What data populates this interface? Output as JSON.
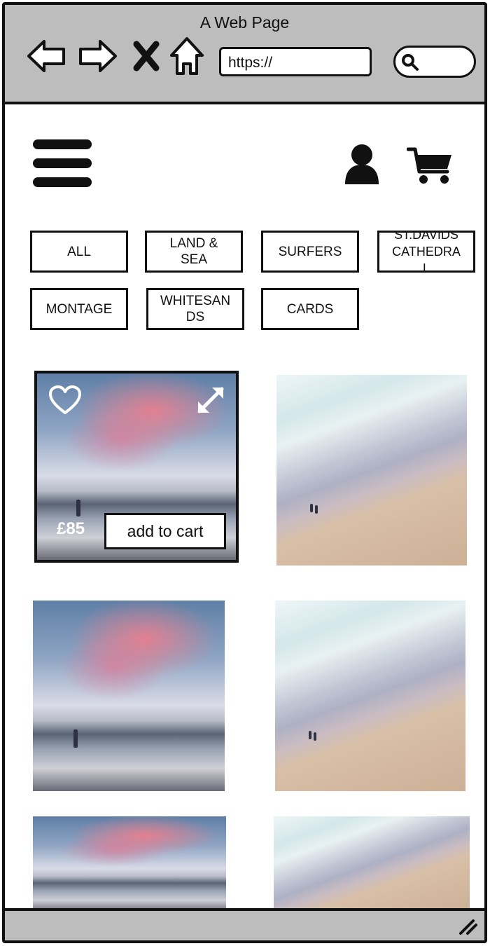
{
  "window": {
    "title": "A Web Page",
    "url": "https://",
    "search_value": ""
  },
  "header": {
    "menu_icon": "hamburger-menu-icon",
    "user_icon": "user-account-icon",
    "cart_icon": "shopping-cart-icon"
  },
  "filters": [
    {
      "label": "ALL"
    },
    {
      "label": "LAND &\nSEA"
    },
    {
      "label": "SURFERS"
    },
    {
      "label": "ST.DAVIDS\nCATHEDRA\nL"
    },
    {
      "label": "MONTAGE"
    },
    {
      "label": "WHITESAN\nDS"
    },
    {
      "label": "CARDS"
    }
  ],
  "gallery": {
    "featured": {
      "price": "£85",
      "add_to_cart_label": "add to cart",
      "favorite_icon": "heart-icon",
      "expand_icon": "expand-icon"
    },
    "items": [
      {
        "image": "sunset-surfer-photo"
      },
      {
        "image": "aerial-beach-photo"
      },
      {
        "image": "sunset-surfer-photo"
      },
      {
        "image": "aerial-beach-photo"
      },
      {
        "image": "sunset-surfer-photo"
      },
      {
        "image": "aerial-beach-photo"
      }
    ]
  },
  "colors": {
    "chrome": "#bdbdbd",
    "outline": "#111111",
    "sunset_pink": "#ee7d8c",
    "beach_sand": "#d8bfa7"
  }
}
